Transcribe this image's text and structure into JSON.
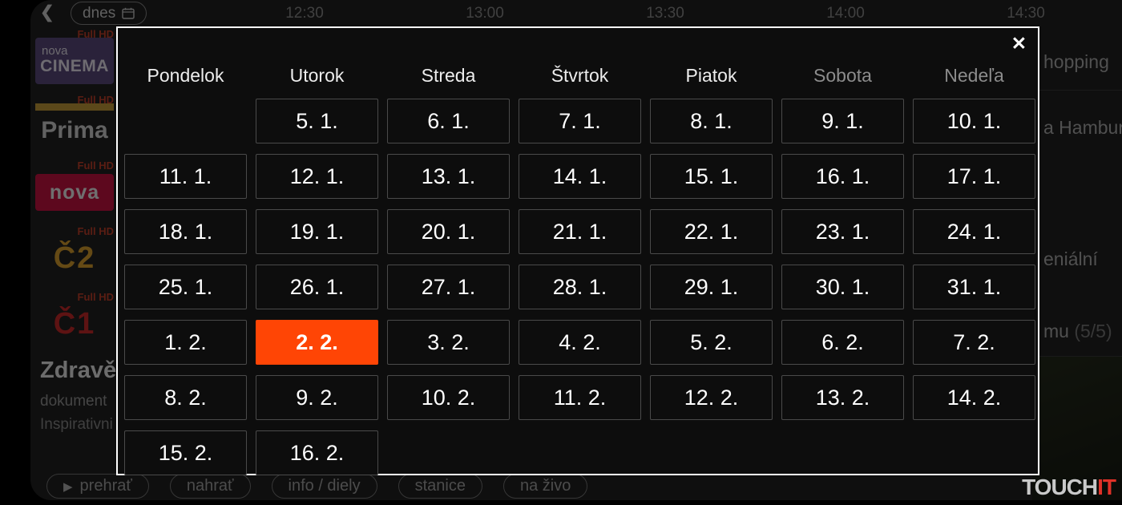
{
  "icons": {
    "back": "❮",
    "close": "✕",
    "play": "▶"
  },
  "topbar": {
    "today_label": "dnes",
    "times": [
      "12:30",
      "13:00",
      "13:30",
      "14:00",
      "14:30"
    ]
  },
  "channels": [
    {
      "id": "nova-cinema",
      "badge": "Full HD",
      "logo_top": "nova",
      "logo_main": "CINEMA"
    },
    {
      "id": "prima",
      "badge": "Full HD",
      "logo_top": "",
      "logo_main": "Prima"
    },
    {
      "id": "nova",
      "badge": "Full HD",
      "logo_top": "",
      "logo_main": "nova"
    },
    {
      "id": "ct2",
      "badge": "Full HD",
      "logo_top": "",
      "logo_main": "Č2"
    },
    {
      "id": "ct1",
      "badge": "Full HD",
      "logo_top": "",
      "logo_main": "Č1"
    }
  ],
  "program_info": {
    "title": "Zdravě",
    "subtitle": "dokument",
    "description": "Inspirativni"
  },
  "programs_right": [
    {
      "text": "hopping",
      "suffix": ""
    },
    {
      "text": "a Hamburg",
      "suffix": ""
    },
    {
      "text": "eniální",
      "suffix": ""
    },
    {
      "text": "mu",
      "suffix": " (5/5)"
    }
  ],
  "bottombar": {
    "buttons": [
      {
        "id": "play",
        "label": "prehrať",
        "has_play_icon": true
      },
      {
        "id": "record",
        "label": "nahrať",
        "has_play_icon": false
      },
      {
        "id": "info",
        "label": "info / diely",
        "has_play_icon": false
      },
      {
        "id": "stations",
        "label": "stanice",
        "has_play_icon": false
      },
      {
        "id": "live",
        "label": "na živo",
        "has_play_icon": false
      }
    ]
  },
  "calendar": {
    "selected_color": "#ff4505",
    "weekdays": [
      {
        "label": "Pondelok",
        "dim": false
      },
      {
        "label": "Utorok",
        "dim": false
      },
      {
        "label": "Streda",
        "dim": false
      },
      {
        "label": "Štvrtok",
        "dim": false
      },
      {
        "label": "Piatok",
        "dim": false
      },
      {
        "label": "Sobota",
        "dim": true
      },
      {
        "label": "Nedeľa",
        "dim": true
      }
    ],
    "rows": [
      [
        null,
        {
          "label": "5. 1."
        },
        {
          "label": "6. 1."
        },
        {
          "label": "7. 1."
        },
        {
          "label": "8. 1."
        },
        {
          "label": "9. 1."
        },
        {
          "label": "10. 1."
        }
      ],
      [
        {
          "label": "11. 1."
        },
        {
          "label": "12. 1."
        },
        {
          "label": "13. 1."
        },
        {
          "label": "14. 1."
        },
        {
          "label": "15. 1."
        },
        {
          "label": "16. 1."
        },
        {
          "label": "17. 1."
        }
      ],
      [
        {
          "label": "18. 1."
        },
        {
          "label": "19. 1."
        },
        {
          "label": "20. 1."
        },
        {
          "label": "21. 1."
        },
        {
          "label": "22. 1."
        },
        {
          "label": "23. 1."
        },
        {
          "label": "24. 1."
        }
      ],
      [
        {
          "label": "25. 1."
        },
        {
          "label": "26. 1."
        },
        {
          "label": "27. 1."
        },
        {
          "label": "28. 1."
        },
        {
          "label": "29. 1."
        },
        {
          "label": "30. 1."
        },
        {
          "label": "31. 1."
        }
      ],
      [
        {
          "label": "1. 2."
        },
        {
          "label": "2. 2.",
          "selected": true
        },
        {
          "label": "3. 2."
        },
        {
          "label": "4. 2."
        },
        {
          "label": "5. 2."
        },
        {
          "label": "6. 2."
        },
        {
          "label": "7. 2."
        }
      ],
      [
        {
          "label": "8. 2."
        },
        {
          "label": "9. 2."
        },
        {
          "label": "10. 2."
        },
        {
          "label": "11. 2."
        },
        {
          "label": "12. 2."
        },
        {
          "label": "13. 2."
        },
        {
          "label": "14. 2."
        }
      ],
      [
        {
          "label": "15. 2."
        },
        {
          "label": "16. 2."
        },
        null,
        null,
        null,
        null,
        null
      ]
    ]
  },
  "watermark": {
    "part1": "TOUCH",
    "part2": "IT"
  }
}
